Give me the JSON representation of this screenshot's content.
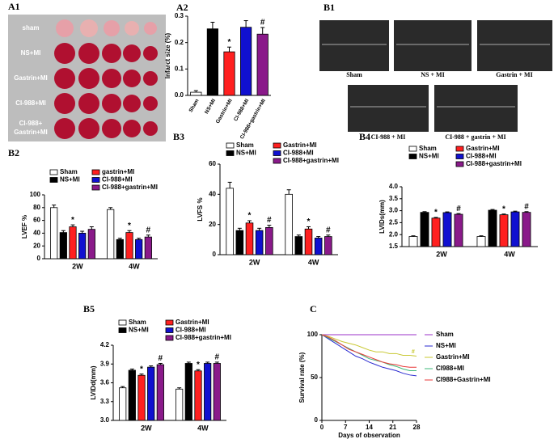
{
  "chart_data": [
    {
      "type": "image",
      "panel": "A1",
      "labels": [
        "sham",
        "NS+MI",
        "Gastrin+MI",
        "CI-988+MI",
        [
          "CI-988+",
          "Gastrin+MI"
        ]
      ]
    },
    {
      "type": "bar",
      "panel": "A2",
      "ylabel": "Infarct size (%)",
      "categories": [
        "Sham",
        "NS+MI",
        "Gastrin+MI",
        "CI-988+MI",
        "CI-988+gastrin+MI"
      ],
      "values": [
        0.012,
        0.252,
        0.165,
        0.258,
        0.232
      ],
      "errors": [
        0.006,
        0.025,
        0.018,
        0.025,
        0.025
      ],
      "colors": [
        "#ffffff",
        "#000000",
        "#ff2020",
        "#1010d0",
        "#8a1a8a"
      ],
      "ylim": [
        0,
        0.3
      ],
      "yticks": [
        {
          "value": 0,
          "label": "0.0"
        },
        0.1,
        0.2,
        0.3
      ],
      "annotations": [
        {
          "text": "*",
          "index": 2
        },
        {
          "text": "#",
          "index": 4
        }
      ]
    },
    {
      "type": "image",
      "panel": "B1",
      "labels": [
        "Sham",
        "NS + MI",
        "Gastrin + MI",
        "CI-988 + MI",
        "CI-988 + gastrin + MI"
      ]
    },
    {
      "type": "grouped-bar",
      "panel": "B2",
      "ylabel": "LVEF %",
      "categories": [
        "2W",
        "4W"
      ],
      "series": [
        {
          "name": "Sham",
          "color": "#ffffff",
          "values": [
            80,
            77
          ],
          "errors": [
            4,
            3
          ]
        },
        {
          "name": "NS+MI",
          "color": "#000000",
          "values": [
            41,
            30
          ],
          "errors": [
            3,
            2
          ]
        },
        {
          "name": "gastrin+MI",
          "color": "#ff2020",
          "values": [
            50,
            41
          ],
          "errors": [
            3,
            3
          ]
        },
        {
          "name": "CI-988+MI",
          "color": "#1010d0",
          "values": [
            40,
            30
          ],
          "errors": [
            3,
            2
          ]
        },
        {
          "name": "CI-988+gastrin+MI",
          "color": "#8a1a8a",
          "values": [
            46,
            34
          ],
          "errors": [
            4,
            3
          ]
        }
      ],
      "ylim": [
        0,
        100
      ],
      "yticks": [
        0,
        20,
        40,
        60,
        80,
        100
      ],
      "annotations": [
        {
          "text": "*",
          "series": 2,
          "index": 0
        },
        {
          "text": "*",
          "series": 2,
          "index": 1
        },
        {
          "text": "#",
          "series": 4,
          "index": 1
        }
      ]
    },
    {
      "type": "grouped-bar",
      "panel": "B3",
      "ylabel": "LVFS %",
      "categories": [
        "2W",
        "4W"
      ],
      "series": [
        {
          "name": "Sham",
          "color": "#ffffff",
          "values": [
            44,
            40
          ],
          "errors": [
            4,
            3
          ]
        },
        {
          "name": "NS+MI",
          "color": "#000000",
          "values": [
            16,
            12
          ],
          "errors": [
            1.5,
            1
          ]
        },
        {
          "name": "Gastrin+MI",
          "color": "#ff2020",
          "values": [
            21,
            17
          ],
          "errors": [
            1.5,
            1.5
          ]
        },
        {
          "name": "CI-988+MI",
          "color": "#1010d0",
          "values": [
            16,
            11
          ],
          "errors": [
            1.5,
            1
          ]
        },
        {
          "name": "CI-988+gastrin+MI",
          "color": "#8a1a8a",
          "values": [
            18,
            12
          ],
          "errors": [
            1.5,
            1
          ]
        }
      ],
      "ylim": [
        0,
        60
      ],
      "yticks": [
        0,
        20,
        40,
        60
      ],
      "annotations": [
        {
          "text": "*",
          "series": 2,
          "index": 0
        },
        {
          "text": "#",
          "series": 4,
          "index": 0
        },
        {
          "text": "*",
          "series": 2,
          "index": 1
        },
        {
          "text": "#",
          "series": 4,
          "index": 1
        }
      ]
    },
    {
      "type": "grouped-bar",
      "panel": "B4",
      "ylabel": "LVIDs(mm)",
      "categories": [
        "2W",
        "4W"
      ],
      "series": [
        {
          "name": "Sham",
          "color": "#ffffff",
          "values": [
            1.92,
            1.92
          ],
          "errors": [
            0.03,
            0.03
          ]
        },
        {
          "name": "NS+MI",
          "color": "#000000",
          "values": [
            2.93,
            3.02
          ],
          "errors": [
            0.03,
            0.03
          ]
        },
        {
          "name": "Gastrin+MI",
          "color": "#ff2020",
          "values": [
            2.69,
            2.83
          ],
          "errors": [
            0.03,
            0.03
          ]
        },
        {
          "name": "CI-988+MI",
          "color": "#1010d0",
          "values": [
            2.92,
            2.95
          ],
          "errors": [
            0.03,
            0.03
          ]
        },
        {
          "name": "CI-988+gastrin+MI",
          "color": "#8a1a8a",
          "values": [
            2.85,
            2.93
          ],
          "errors": [
            0.03,
            0.03
          ]
        }
      ],
      "ylim": [
        1.5,
        4.0
      ],
      "yticks": [
        1.5,
        {
          "value": 2,
          "label": "2.0"
        },
        2.5,
        {
          "value": 3,
          "label": "3.0"
        },
        3.5,
        {
          "value": 4,
          "label": "4.0"
        }
      ],
      "annotations": [
        {
          "text": "*",
          "series": 2,
          "index": 0
        },
        {
          "text": "#",
          "series": 4,
          "index": 0
        },
        {
          "text": "*",
          "series": 2,
          "index": 1
        },
        {
          "text": "#",
          "series": 4,
          "index": 1
        }
      ]
    },
    {
      "type": "grouped-bar",
      "panel": "B5",
      "ylabel": "LVIDd(mm)",
      "categories": [
        "2W",
        "4W"
      ],
      "series": [
        {
          "name": "Sham",
          "color": "#ffffff",
          "values": [
            3.52,
            3.5
          ],
          "errors": [
            0.02,
            0.02
          ]
        },
        {
          "name": "NS+MI",
          "color": "#000000",
          "values": [
            3.8,
            3.91
          ],
          "errors": [
            0.02,
            0.02
          ]
        },
        {
          "name": "Gastrin+MI",
          "color": "#ff2020",
          "values": [
            3.72,
            3.79
          ],
          "errors": [
            0.02,
            0.02
          ]
        },
        {
          "name": "CI-988+MI",
          "color": "#1010d0",
          "values": [
            3.85,
            3.91
          ],
          "errors": [
            0.02,
            0.02
          ]
        },
        {
          "name": "CI-988+gastrin+MI",
          "color": "#8a1a8a",
          "values": [
            3.89,
            3.91
          ],
          "errors": [
            0.02,
            0.02
          ]
        }
      ],
      "ylim": [
        3.0,
        4.2
      ],
      "yticks": [
        {
          "value": 3,
          "label": "3.0"
        },
        3.3,
        3.6,
        3.9,
        4.2
      ],
      "annotations": [
        {
          "text": "*",
          "series": 2,
          "index": 0
        },
        {
          "text": "#",
          "series": 4,
          "index": 0
        },
        {
          "text": "*",
          "series": 2,
          "index": 1
        },
        {
          "text": "#",
          "series": 4,
          "index": 1
        }
      ]
    },
    {
      "type": "line",
      "panel": "C",
      "xlabel": "Days of observation",
      "ylabel": "Survival rate (%)",
      "x": [
        0,
        2,
        4,
        6,
        8,
        10,
        12,
        14,
        16,
        18,
        20,
        22,
        24,
        26,
        28
      ],
      "series": [
        {
          "name": "Sham",
          "color": "#9b30c8",
          "values": [
            100,
            100,
            100,
            100,
            100,
            100,
            100,
            100,
            100,
            100,
            100,
            100,
            100,
            100,
            100
          ]
        },
        {
          "name": "NS+MI",
          "color": "#2a2ad0",
          "values": [
            100,
            95,
            90,
            85,
            80,
            75,
            72,
            68,
            65,
            62,
            60,
            58,
            55,
            53,
            52
          ]
        },
        {
          "name": "Gastrin+MI",
          "color": "#c8c832",
          "values": [
            100,
            98,
            95,
            92,
            90,
            88,
            85,
            82,
            80,
            80,
            78,
            78,
            76,
            76,
            75
          ]
        },
        {
          "name": "CI988+MI",
          "color": "#3cb878",
          "values": [
            100,
            96,
            92,
            88,
            84,
            80,
            76,
            72,
            70,
            68,
            65,
            63,
            60,
            58,
            58
          ]
        },
        {
          "name": "CI988+Gastrin+MI",
          "color": "#e83838",
          "values": [
            100,
            97,
            93,
            88,
            83,
            80,
            77,
            74,
            71,
            68,
            66,
            65,
            63,
            62,
            62
          ]
        }
      ],
      "xlim": [
        0,
        28
      ],
      "xticks": [
        0,
        7,
        14,
        21,
        28
      ],
      "ylim": [
        0,
        100
      ],
      "yticks": [
        0,
        50,
        100
      ],
      "annotations": [
        {
          "text": "#",
          "x": 27,
          "y": 80
        }
      ]
    }
  ]
}
